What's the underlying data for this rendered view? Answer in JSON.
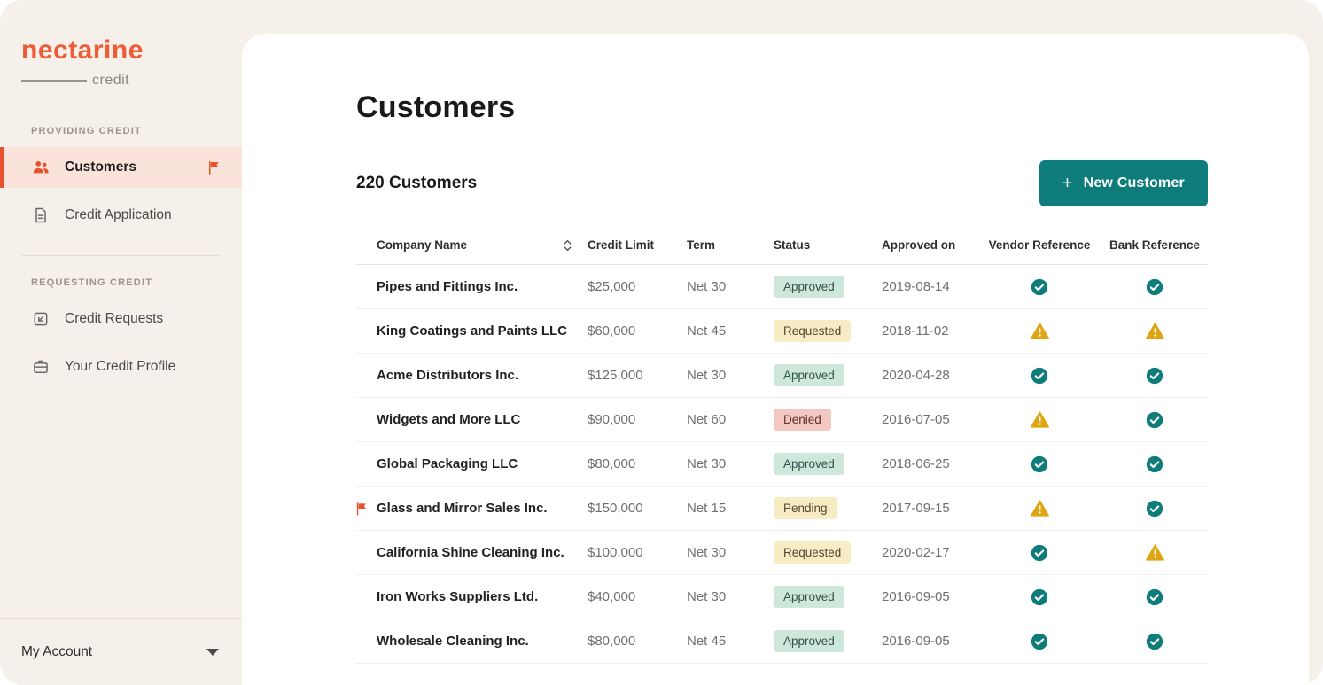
{
  "brand": {
    "name": "nectarine",
    "sub": "credit"
  },
  "colors": {
    "accent": "#e8512e",
    "teal": "#0e7c7a",
    "warning": "#dfa512",
    "approved_badge_bg": "#cde7da",
    "requested_badge_bg": "#f8ecc5",
    "denied_badge_bg": "#f3c8c2",
    "sidebar_bg": "#f6f0ea"
  },
  "sidebar": {
    "sections": [
      {
        "label": "PROVIDING CREDIT",
        "items": [
          {
            "label": "Customers",
            "icon": "customers-icon",
            "active": true,
            "flagged": true
          },
          {
            "label": "Credit Application",
            "icon": "credit-application-icon",
            "active": false,
            "flagged": false
          }
        ]
      },
      {
        "label": "REQUESTING CREDIT",
        "items": [
          {
            "label": "Credit Requests",
            "icon": "credit-requests-icon",
            "active": false,
            "flagged": false
          },
          {
            "label": "Your Credit Profile",
            "icon": "credit-profile-icon",
            "active": false,
            "flagged": false
          }
        ]
      }
    ],
    "account": {
      "label": "My Account"
    }
  },
  "main": {
    "title": "Customers",
    "count_label": "220 Customers",
    "new_customer_button": {
      "plus": "+",
      "label": "New Customer"
    },
    "table": {
      "columns": [
        "Company Name",
        "Credit Limit",
        "Term",
        "Status",
        "Approved on",
        "Vendor Reference",
        "Bank Reference"
      ],
      "rows": [
        {
          "company": "Pipes and Fittings Inc.",
          "flagged": false,
          "credit_limit": "$25,000",
          "term": "Net 30",
          "status": "Approved",
          "approved_on": "2019-08-14",
          "vendor_reference": "verified",
          "bank_reference": "verified"
        },
        {
          "company": "King Coatings and Paints LLC",
          "flagged": false,
          "credit_limit": "$60,000",
          "term": "Net 45",
          "status": "Requested",
          "approved_on": "2018-11-02",
          "vendor_reference": "warning",
          "bank_reference": "warning"
        },
        {
          "company": "Acme Distributors Inc.",
          "flagged": false,
          "credit_limit": "$125,000",
          "term": "Net 30",
          "status": "Approved",
          "approved_on": "2020-04-28",
          "vendor_reference": "verified",
          "bank_reference": "verified"
        },
        {
          "company": "Widgets and More LLC",
          "flagged": false,
          "credit_limit": "$90,000",
          "term": "Net 60",
          "status": "Denied",
          "approved_on": "2016-07-05",
          "vendor_reference": "warning",
          "bank_reference": "verified"
        },
        {
          "company": "Global Packaging LLC",
          "flagged": false,
          "credit_limit": "$80,000",
          "term": "Net 30",
          "status": "Approved",
          "approved_on": "2018-06-25",
          "vendor_reference": "verified",
          "bank_reference": "verified"
        },
        {
          "company": "Glass and Mirror Sales Inc.",
          "flagged": true,
          "credit_limit": "$150,000",
          "term": "Net 15",
          "status": "Pending",
          "approved_on": "2017-09-15",
          "vendor_reference": "warning",
          "bank_reference": "verified"
        },
        {
          "company": "California Shine Cleaning Inc.",
          "flagged": false,
          "credit_limit": "$100,000",
          "term": "Net 30",
          "status": "Requested",
          "approved_on": "2020-02-17",
          "vendor_reference": "verified",
          "bank_reference": "warning"
        },
        {
          "company": "Iron Works Suppliers Ltd.",
          "flagged": false,
          "credit_limit": "$40,000",
          "term": "Net 30",
          "status": "Approved",
          "approved_on": "2016-09-05",
          "vendor_reference": "verified",
          "bank_reference": "verified"
        },
        {
          "company": "Wholesale Cleaning Inc.",
          "flagged": false,
          "credit_limit": "$80,000",
          "term": "Net 45",
          "status": "Approved",
          "approved_on": "2016-09-05",
          "vendor_reference": "verified",
          "bank_reference": "verified"
        }
      ]
    }
  }
}
